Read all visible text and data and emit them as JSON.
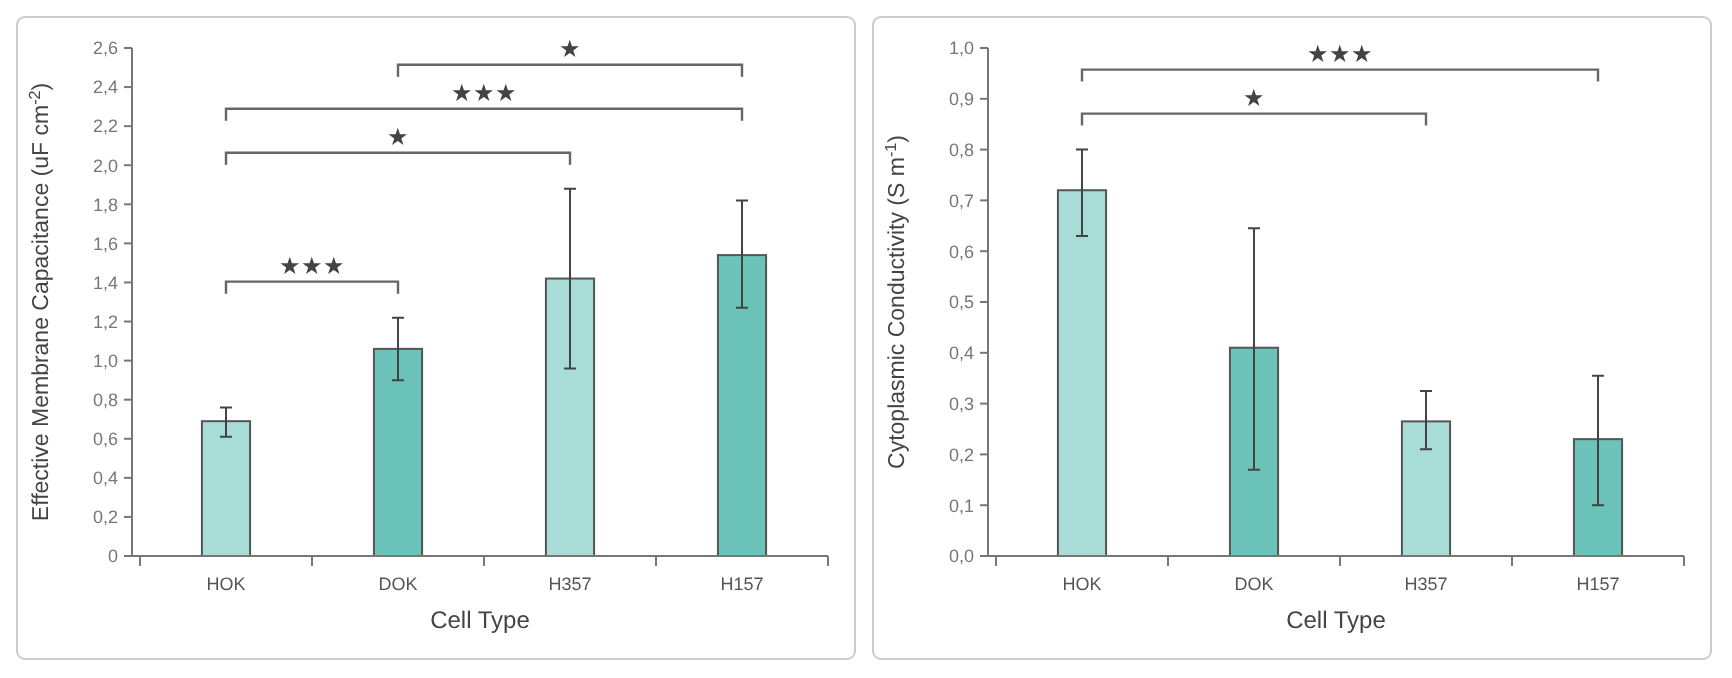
{
  "chart_data": [
    {
      "type": "bar",
      "xlabel": "Cell Type",
      "ylabel": "Effective Membrane Capacitance (uF cm$^{-2}$)",
      "categories": [
        "HOK",
        "DOK",
        "H357",
        "H157"
      ],
      "values": [
        0.69,
        1.06,
        1.42,
        1.54
      ],
      "colors": [
        "#a8dcd6",
        "#6cc3ba",
        "#a8dcd6",
        "#6cc3ba"
      ],
      "errors": [
        [
          0.61,
          0.76
        ],
        [
          0.9,
          1.22
        ],
        [
          0.96,
          1.88
        ],
        [
          1.27,
          1.82
        ]
      ],
      "ylim": [
        0,
        2.6
      ],
      "yticks": [
        0,
        {
          "value": 0.2,
          "label": "0,2"
        },
        {
          "value": 0.4,
          "label": "0,4"
        },
        {
          "value": 0.6,
          "label": "0,6"
        },
        {
          "value": 0.8,
          "label": "0,8"
        },
        {
          "value": 1,
          "label": "1,0"
        },
        {
          "value": 1.2,
          "label": "1,2"
        },
        {
          "value": 1.4,
          "label": "1,4"
        },
        {
          "value": 1.6,
          "label": "1,6"
        },
        {
          "value": 1.8,
          "label": "1,8"
        },
        {
          "value": 2,
          "label": "2,0"
        },
        {
          "value": 2.2,
          "label": "2,2"
        },
        {
          "value": 2.4,
          "label": "2,4"
        },
        {
          "value": 2.6,
          "label": "2,6"
        }
      ],
      "annotations": [
        "★★★",
        "★",
        "★★★",
        "★"
      ],
      "grid": false
    },
    {
      "type": "bar",
      "xlabel": "Cell Type",
      "ylabel": "Cytoplasmic Conductivity (S m$^{-1}$)",
      "categories": [
        "HOK",
        "DOK",
        "H357",
        "H157"
      ],
      "values": [
        0.72,
        0.41,
        0.265,
        0.23
      ],
      "colors": [
        "#a8dcd6",
        "#6cc3ba",
        "#a8dcd6",
        "#6cc3ba"
      ],
      "errors": [
        [
          0.63,
          0.8
        ],
        [
          0.17,
          0.645
        ],
        [
          0.21,
          0.325
        ],
        [
          0.1,
          0.355
        ]
      ],
      "ylim": [
        0,
        1
      ],
      "yticks": [
        {
          "value": 0,
          "label": "0,0"
        },
        {
          "value": 0.1,
          "label": "0,1"
        },
        {
          "value": 0.2,
          "label": "0,2"
        },
        {
          "value": 0.3,
          "label": "0,3"
        },
        {
          "value": 0.4,
          "label": "0,4"
        },
        {
          "value": 0.5,
          "label": "0,5"
        },
        {
          "value": 0.6,
          "label": "0,6"
        },
        {
          "value": 0.7,
          "label": "0,7"
        },
        {
          "value": 0.8,
          "label": "0,8"
        },
        {
          "value": 0.9,
          "label": "0,9"
        },
        {
          "value": 1,
          "label": "1,0"
        }
      ],
      "annotations": [
        "★",
        "★★★"
      ],
      "grid": false
    }
  ]
}
